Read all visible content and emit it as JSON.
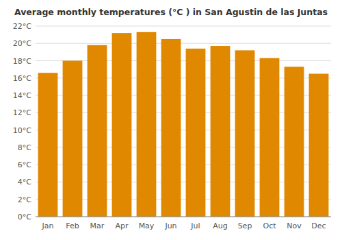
{
  "chart_data": {
    "type": "bar",
    "title": "Average monthly temperatures (°C ) in San Agustin de las Juntas",
    "categories": [
      "Jan",
      "Feb",
      "Mar",
      "Apr",
      "May",
      "Jun",
      "Jul",
      "Aug",
      "Sep",
      "Oct",
      "Nov",
      "Dec"
    ],
    "values": [
      16.6,
      18.0,
      19.8,
      21.2,
      21.3,
      20.5,
      19.4,
      19.7,
      19.2,
      18.3,
      17.3,
      16.5
    ],
    "color": "#E08800",
    "ylim": [
      0,
      22
    ],
    "yticks": [
      {
        "value": 0,
        "label": "0°C"
      },
      {
        "value": 2,
        "label": "2°C"
      },
      {
        "value": 4,
        "label": "4°C"
      },
      {
        "value": 6,
        "label": "6°C"
      },
      {
        "value": 8,
        "label": "8°C"
      },
      {
        "value": 10,
        "label": "10°C"
      },
      {
        "value": 12,
        "label": "12°C"
      },
      {
        "value": 14,
        "label": "14°C"
      },
      {
        "value": 16,
        "label": "16°C"
      },
      {
        "value": 18,
        "label": "18°C"
      },
      {
        "value": 20,
        "label": "20°C"
      },
      {
        "value": 22,
        "label": "22°C"
      }
    ],
    "grid": true
  }
}
